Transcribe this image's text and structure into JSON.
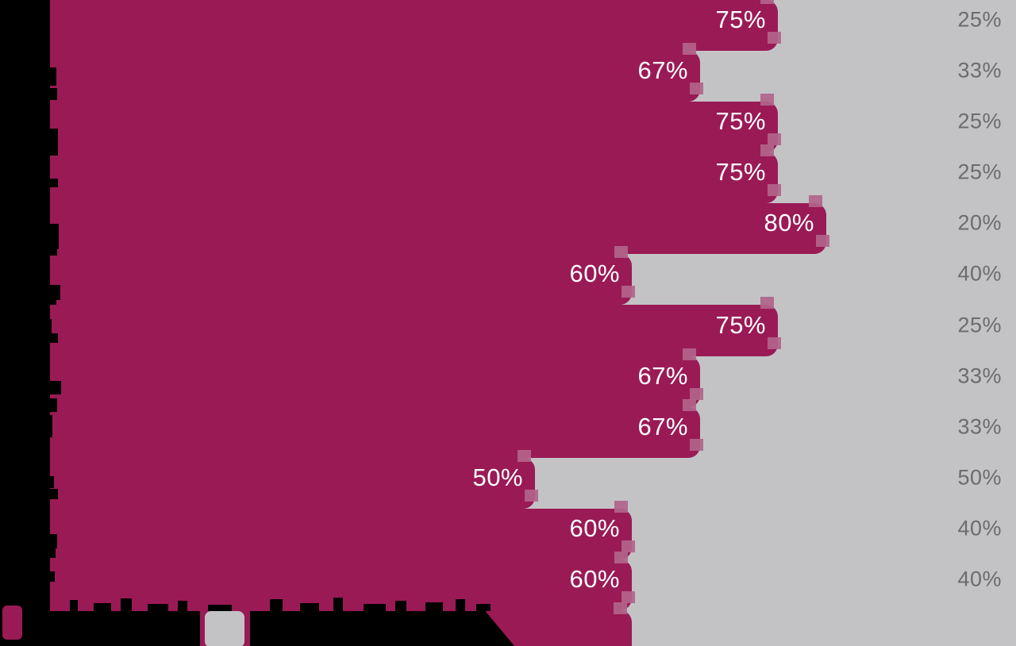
{
  "chart_data": {
    "type": "bar",
    "orientation": "horizontal",
    "stacked": true,
    "grid": false,
    "value_range": [
      0,
      100
    ],
    "categories": [
      "",
      "",
      "",
      "",
      "",
      "",
      "",
      "",
      "",
      "",
      "",
      ""
    ],
    "series": [
      {
        "id": "primary",
        "name": "",
        "color": "#9a1a56",
        "label_color": "#ffffff",
        "values": [
          75,
          67,
          75,
          75,
          80,
          60,
          75,
          67,
          67,
          50,
          60,
          60
        ],
        "labels": [
          "75%",
          "67%",
          "75%",
          "75%",
          "80%",
          "60%",
          "75%",
          "67%",
          "67%",
          "50%",
          "60%",
          "60%"
        ]
      },
      {
        "id": "remainder",
        "name": "",
        "color": "#c3c3c5",
        "label_color": "#6c6c70",
        "values": [
          25,
          33,
          25,
          25,
          20,
          40,
          25,
          33,
          33,
          50,
          40,
          40
        ],
        "labels": [
          "25%",
          "33%",
          "25%",
          "25%",
          "20%",
          "40%",
          "25%",
          "33%",
          "33%",
          "50%",
          "40%",
          "40%"
        ]
      }
    ],
    "legend_position": "bottom-left",
    "notes": "Row category labels and the two legend captions are rendered in black on a black/transparent background and are not legible in the screenshot; only their glyph-top silhouettes carve into the bottom bar."
  },
  "legend": {
    "items": [
      {
        "label": "",
        "swatch_color": "#9a1a56"
      },
      {
        "label": "",
        "swatch_color": "#c3c3c5"
      }
    ]
  },
  "colors": {
    "background": "#000000",
    "bar_primary": "#9a1a56",
    "bar_remainder": "#c3c3c5",
    "label_on_primary": "#ffffff",
    "label_on_remainder": "#6c6c70",
    "corner_artifact": "rgba(178,100,138,0.92)"
  }
}
